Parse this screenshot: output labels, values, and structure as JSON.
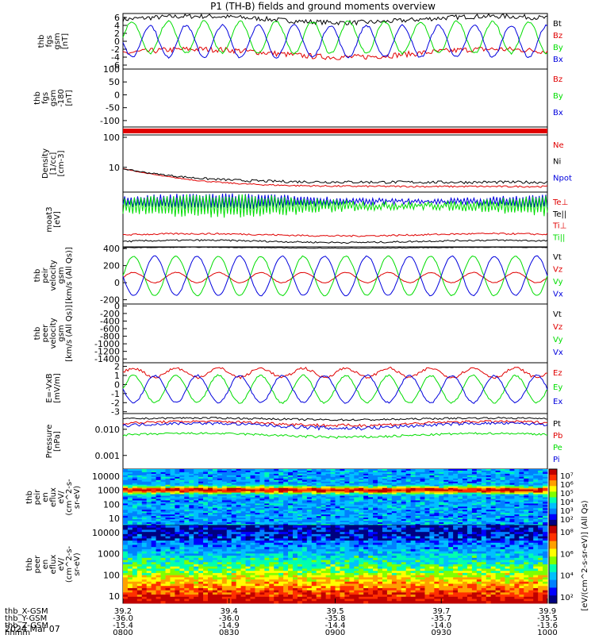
{
  "title": "P1 (TH-B) fields and ground moments overview",
  "date_label": "2024 Mar 07",
  "colors": {
    "black": "#000000",
    "red": "#e00000",
    "green": "#00dd00",
    "blue": "#0000dd"
  },
  "orbit": {
    "row_labels": [
      "thb_X-GSM",
      "thb_Y-GSM",
      "thb_Z-GSM",
      "hhmm"
    ],
    "columns": [
      [
        "39.2",
        "-36.0",
        "-15.4",
        "0800"
      ],
      [
        "39.4",
        "-36.0",
        "-14.9",
        "0830"
      ],
      [
        "39.5",
        "-35.8",
        "-14.4",
        "0900"
      ],
      [
        "39.7",
        "-35.7",
        "-14.0",
        "0930"
      ],
      [
        "39.9",
        "-35.5",
        "-13.6",
        "1000"
      ]
    ]
  },
  "chart_data": [
    {
      "type": "line",
      "ylabel": [
        "thb",
        "fgs",
        "gsm",
        "[nT]"
      ],
      "yticks": [
        "6",
        "4",
        "2",
        "0",
        "-2",
        "-4",
        "-6"
      ],
      "legend": [
        "Bt",
        "Bz",
        "By",
        "Bx"
      ],
      "ylim": [
        -7,
        7
      ],
      "series": [
        {
          "name": "Bt",
          "color": "black",
          "shape": "level",
          "base": 5.5,
          "amp": 0.8,
          "noise": 0.6
        },
        {
          "name": "Bz",
          "color": "red",
          "shape": "level",
          "base": -3,
          "amp": 1.0,
          "noise": 0.7
        },
        {
          "name": "By",
          "color": "green",
          "shape": "wave",
          "base": 1,
          "amp": 4,
          "period": 0.085,
          "noise": 0.3
        },
        {
          "name": "Bx",
          "color": "blue",
          "shape": "wave",
          "base": 0,
          "amp": 4,
          "period": 0.085,
          "phase": 0.5,
          "noise": 0.3
        }
      ]
    },
    {
      "type": "line",
      "ylabel": [
        "thb",
        "fgs",
        "gsm",
        "-180",
        "[nT]"
      ],
      "yticks": [
        "100",
        "50",
        "0",
        "-50",
        "-100"
      ],
      "legend": [
        "Bz",
        "By",
        "Bx"
      ],
      "ylim": [
        -125,
        100
      ],
      "series": []
    },
    {
      "type": "bar",
      "ylabel": [],
      "yticks": [],
      "legend": [],
      "series": []
    },
    {
      "type": "line",
      "ylabel": [
        "Density",
        "[1/cc]",
        "[cm-3]"
      ],
      "yticks": [
        "100",
        "10"
      ],
      "legend": [
        "Ne",
        "Ni",
        "Npot"
      ],
      "ylim": [
        1.5,
        120
      ],
      "log": true,
      "series": [
        {
          "name": "Ne",
          "color": "red",
          "shape": "decay",
          "base": 2.3,
          "start": 9,
          "noise": 0.15
        },
        {
          "name": "Ni",
          "color": "black",
          "shape": "decay",
          "base": 3.2,
          "start": 9,
          "noise": 0.35
        }
      ]
    },
    {
      "type": "line",
      "ylabel": [
        "moat3",
        "[eV]"
      ],
      "yticks": [],
      "legend": [
        "Te⊥",
        "Te||",
        "Ti⊥",
        "Ti||"
      ],
      "ylim": [
        0,
        10
      ],
      "series": [
        {
          "name": "Te||",
          "color": "blue",
          "shape": "spiky",
          "base": 8.3,
          "amp": 1.2,
          "noise": 0.3
        },
        {
          "name": "Te⊥",
          "color": "green",
          "shape": "spiky",
          "base": 7.5,
          "amp": 1.8,
          "noise": 0.4
        },
        {
          "name": "Ti⊥",
          "color": "red",
          "shape": "level",
          "base": 2.2,
          "amp": 0.2,
          "noise": 0.15
        },
        {
          "name": "Ti||",
          "color": "black",
          "shape": "level",
          "base": 1.0,
          "amp": 0.2,
          "noise": 0.15
        }
      ]
    },
    {
      "type": "line",
      "ylabel": [
        "thb",
        "peir",
        "velocity",
        "gsm",
        "[km/s (All Qs)]"
      ],
      "yticks": [
        "400",
        "200",
        "0",
        "-200"
      ],
      "legend": [
        "Vt",
        "Vz",
        "Vy",
        "Vx"
      ],
      "ylim": [
        -250,
        420
      ],
      "series": [
        {
          "name": "Vt",
          "color": "black",
          "shape": "level",
          "base": 410,
          "amp": 5,
          "noise": 3
        },
        {
          "name": "Vz",
          "color": "red",
          "shape": "wave",
          "base": 60,
          "amp": 60,
          "period": 0.1,
          "noise": 4
        },
        {
          "name": "Vy",
          "color": "green",
          "shape": "wave",
          "base": 80,
          "amp": 230,
          "period": 0.1,
          "noise": 6
        },
        {
          "name": "Vx",
          "color": "blue",
          "shape": "wave",
          "base": 80,
          "amp": 230,
          "period": 0.1,
          "phase": 0.5,
          "noise": 6
        }
      ]
    },
    {
      "type": "line",
      "ylabel": [
        "thb",
        "peer",
        "velocity",
        "gsm",
        "[km/s (All Qs)]"
      ],
      "yticks": [
        "0",
        "-200",
        "-400",
        "-600",
        "-800",
        "-1000",
        "-1200",
        "-1400"
      ],
      "legend": [
        "Vt",
        "Vz",
        "Vy",
        "Vx"
      ],
      "ylim": [
        -1500,
        50
      ],
      "series": []
    },
    {
      "type": "line",
      "ylabel": [
        "E=-VxB",
        "[mV/m]"
      ],
      "yticks": [
        "2",
        "1",
        "0",
        "-1",
        "-2",
        "-3"
      ],
      "legend": [
        "Ez",
        "Ey",
        "Ex"
      ],
      "ylim": [
        -3.2,
        2.4
      ],
      "series": [
        {
          "name": "Ez",
          "color": "red",
          "shape": "wave",
          "base": 1.3,
          "amp": 0.5,
          "period": 0.1,
          "noise": 0.15
        },
        {
          "name": "Ey",
          "color": "green",
          "shape": "wave",
          "base": -0.5,
          "amp": 1.5,
          "period": 0.1,
          "noise": 0.1
        },
        {
          "name": "Ex",
          "color": "blue",
          "shape": "wave",
          "base": -0.5,
          "amp": 1.5,
          "period": 0.1,
          "phase": 0.5,
          "noise": 0.1
        }
      ]
    },
    {
      "type": "line",
      "ylabel": [
        "Pressure",
        "[nPa]"
      ],
      "yticks": [
        "0.010",
        "0.001"
      ],
      "legend": [
        "Pt",
        "Pb",
        "Pe",
        "Pi"
      ],
      "ylim": [
        0.0003,
        0.04
      ],
      "log": true,
      "series": [
        {
          "name": "Pt",
          "color": "black",
          "shape": "level",
          "base": 0.025,
          "amp": 0.002,
          "noise": 0.002
        },
        {
          "name": "Pb",
          "color": "red",
          "shape": "level",
          "base": 0.017,
          "amp": 0.003,
          "noise": 0.002
        },
        {
          "name": "Pi",
          "color": "blue",
          "shape": "level",
          "base": 0.014,
          "amp": 0.003,
          "noise": 0.002
        },
        {
          "name": "Pe",
          "color": "green",
          "shape": "level",
          "base": 0.006,
          "amp": 0.001,
          "noise": 0.0006
        }
      ]
    },
    {
      "type": "heatmap",
      "ylabel": [
        "thb",
        "peir",
        "en",
        "eflux",
        "eV/",
        "(cm^2-s-",
        "sr-eV)"
      ],
      "yticks": [
        "10000",
        "1000",
        "100",
        "10"
      ],
      "legend": [],
      "ylim": [
        5,
        25000
      ],
      "colorbar_label": "[eV/(cm^2-s-sr-eV)] (All Qs)",
      "colorbar_ticks": [
        "10⁷",
        "10⁶",
        "10⁵",
        "10⁴",
        "10³",
        "10²"
      ]
    },
    {
      "type": "heatmap",
      "ylabel": [
        "thb",
        "peer",
        "en",
        "eflux",
        "eV/",
        "(cm^2-s-",
        "sr-eV)"
      ],
      "yticks": [
        "10000",
        "1000",
        "100",
        "10"
      ],
      "legend": [],
      "ylim": [
        5,
        25000
      ],
      "colorbar_label": "[eV/(cm^2-s-sr-eV)] (All Qs)",
      "colorbar_ticks": [
        "10⁸",
        "10⁶",
        "10⁴",
        "10²"
      ]
    }
  ]
}
